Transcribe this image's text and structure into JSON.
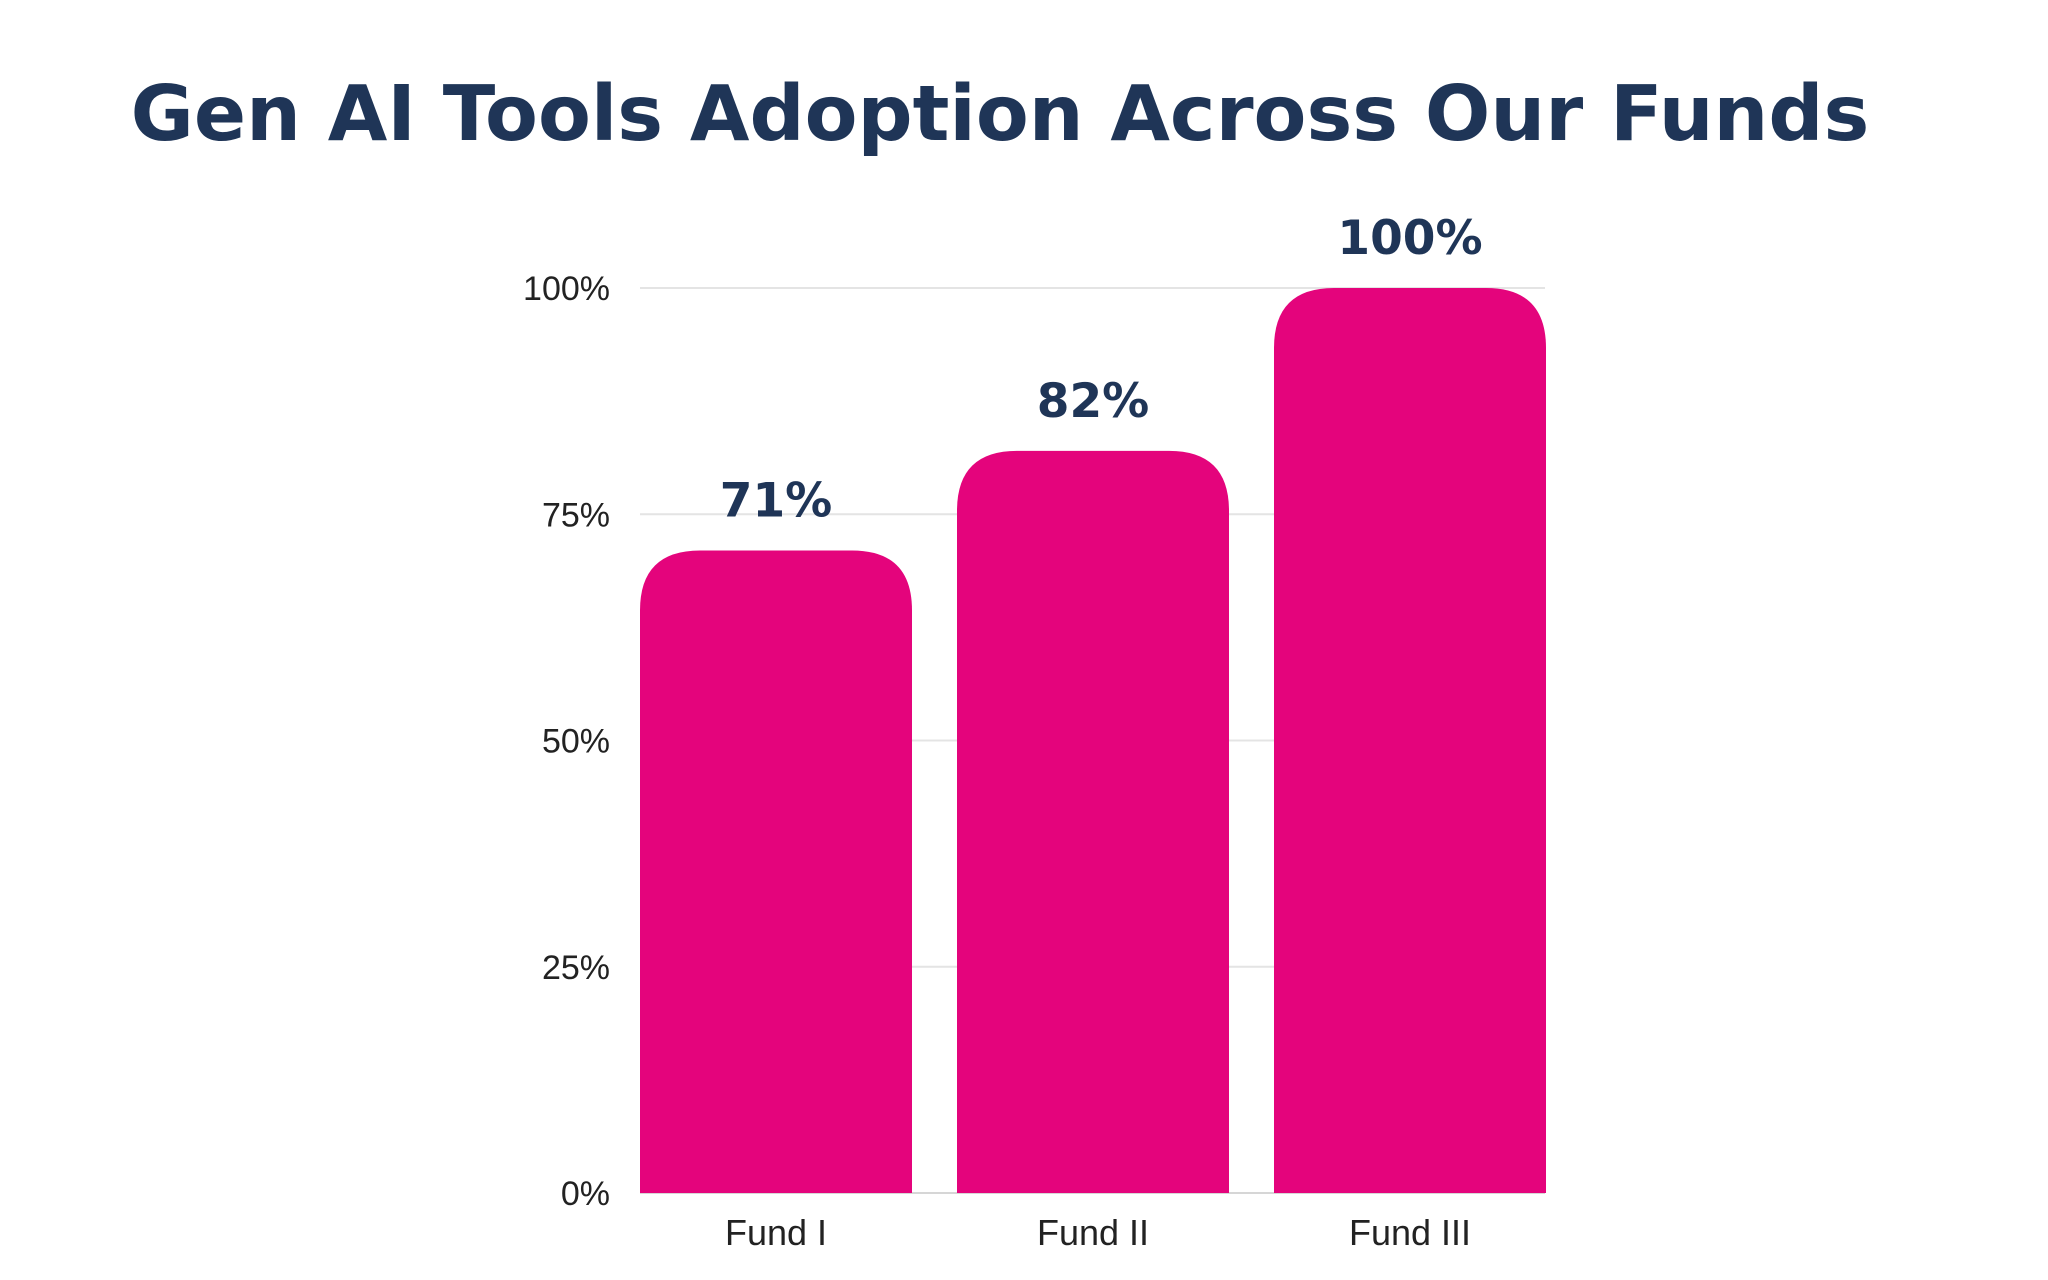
{
  "chart_data": {
    "type": "bar",
    "title": "Gen AI Tools Adoption Across Our Funds",
    "categories": [
      "Fund I",
      "Fund II",
      "Fund III"
    ],
    "values": [
      71,
      82,
      100
    ],
    "value_labels": [
      "71%",
      "82%",
      "100%"
    ],
    "ylim": [
      0,
      100
    ],
    "yticks": [
      0,
      25,
      50,
      75,
      100
    ],
    "ytick_labels": [
      "0%",
      "25%",
      "50%",
      "75%",
      "100%"
    ],
    "xlabel": "",
    "ylabel": "",
    "grid": true,
    "legend": "none"
  },
  "colors": {
    "bar": "#e4047c",
    "title": "#1f3557",
    "data_label": "#1f3557",
    "axis_text": "#222222",
    "grid": "#e4e4e4",
    "background": "#ffffff"
  }
}
